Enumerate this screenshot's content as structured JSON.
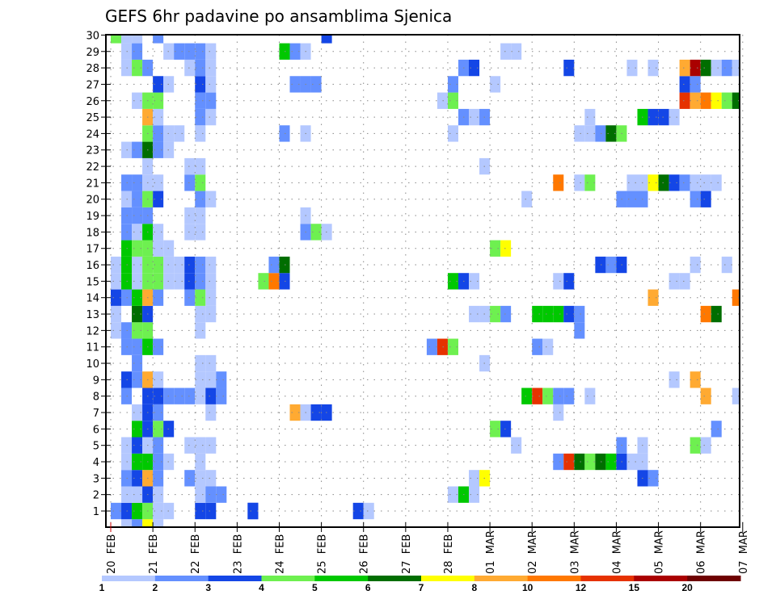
{
  "chart_data": {
    "type": "heatmap",
    "title": "GEFS 6hr padavine po ansamblima Sjenica",
    "xlabel": "",
    "ylabel": "",
    "x_ticks": [
      "20 FEB",
      "21 FEB",
      "22 FEB",
      "23 FEB",
      "24 FEB",
      "25 FEB",
      "26 FEB",
      "27 FEB",
      "28 FEB",
      "01 MAR",
      "02 MAR",
      "03 MAR",
      "04 MAR",
      "05 MAR",
      "06 MAR",
      "07 MAR"
    ],
    "y_ticks": [
      "1",
      "2",
      "3",
      "4",
      "5",
      "6",
      "7",
      "8",
      "9",
      "10",
      "11",
      "12",
      "13",
      "14",
      "15",
      "16",
      "17",
      "18",
      "19",
      "20",
      "21",
      "22",
      "23",
      "24",
      "25",
      "26",
      "27",
      "28",
      "29",
      "30"
    ],
    "x_step": "6hr",
    "grid": true,
    "colorbar": {
      "labels": [
        "1",
        "2",
        "3",
        "4",
        "5",
        "6",
        "7",
        "8",
        "10",
        "12",
        "15",
        "20"
      ],
      "colors": [
        "#b4c8ff",
        "#6490ff",
        "#1446e6",
        "#6ef050",
        "#00c800",
        "#006e00",
        "#ffff00",
        "#ffaa32",
        "#ff7800",
        "#e63200",
        "#aa0000",
        "#6e0000"
      ]
    },
    "cells_note": "rows keyed by ensemble member; each entry is [6hr step index from 20 FEB, color level 1-12]",
    "rows": {
      "0": [
        [
          1,
          1
        ],
        [
          2,
          2
        ],
        [
          3,
          7
        ],
        [
          4,
          1
        ]
      ],
      "1": [
        [
          0,
          2
        ],
        [
          1,
          3
        ],
        [
          2,
          5
        ],
        [
          3,
          4
        ],
        [
          4,
          1
        ],
        [
          5,
          1
        ],
        [
          13,
          3
        ],
        [
          13,
          3
        ],
        [
          23,
          3
        ],
        [
          24,
          1
        ],
        [
          9,
          3
        ],
        [
          8,
          3
        ]
      ],
      "2": [
        [
          1,
          1
        ],
        [
          2,
          1
        ],
        [
          3,
          3
        ],
        [
          4,
          1
        ],
        [
          8,
          1
        ],
        [
          9,
          2
        ],
        [
          10,
          2
        ],
        [
          32,
          1
        ],
        [
          33,
          5
        ],
        [
          34,
          1
        ]
      ],
      "3": [
        [
          1,
          2
        ],
        [
          2,
          3
        ],
        [
          3,
          8
        ],
        [
          4,
          2
        ],
        [
          7,
          2
        ],
        [
          8,
          1
        ],
        [
          9,
          1
        ],
        [
          34,
          1
        ],
        [
          35,
          7
        ],
        [
          50,
          3
        ],
        [
          51,
          2
        ]
      ],
      "4": [
        [
          1,
          1
        ],
        [
          2,
          5
        ],
        [
          3,
          5
        ],
        [
          4,
          2
        ],
        [
          5,
          1
        ],
        [
          8,
          1
        ],
        [
          42,
          2
        ],
        [
          43,
          10
        ],
        [
          44,
          6
        ],
        [
          45,
          4
        ],
        [
          46,
          6
        ],
        [
          47,
          5
        ],
        [
          48,
          3
        ],
        [
          49,
          1
        ],
        [
          50,
          1
        ]
      ],
      "5": [
        [
          1,
          1
        ],
        [
          2,
          3
        ],
        [
          3,
          1
        ],
        [
          4,
          2
        ],
        [
          7,
          1
        ],
        [
          8,
          1
        ],
        [
          9,
          1
        ],
        [
          38,
          1
        ],
        [
          48,
          2
        ],
        [
          50,
          1
        ],
        [
          55,
          4
        ],
        [
          56,
          1
        ]
      ],
      "6": [
        [
          2,
          5
        ],
        [
          3,
          3
        ],
        [
          4,
          4
        ],
        [
          5,
          3
        ],
        [
          36,
          4
        ],
        [
          37,
          3
        ],
        [
          57,
          2
        ]
      ],
      "7": [
        [
          2,
          1
        ],
        [
          3,
          3
        ],
        [
          4,
          2
        ],
        [
          9,
          1
        ],
        [
          17,
          8
        ],
        [
          18,
          1
        ],
        [
          19,
          3
        ],
        [
          20,
          3
        ],
        [
          42,
          1
        ]
      ],
      "8": [
        [
          1,
          2
        ],
        [
          3,
          3
        ],
        [
          4,
          3
        ],
        [
          5,
          2
        ],
        [
          6,
          2
        ],
        [
          7,
          2
        ],
        [
          8,
          1
        ],
        [
          9,
          3
        ],
        [
          10,
          2
        ],
        [
          39,
          5
        ],
        [
          40,
          10
        ],
        [
          41,
          4
        ],
        [
          42,
          2
        ],
        [
          43,
          2
        ],
        [
          45,
          1
        ],
        [
          56,
          8
        ],
        [
          59,
          1
        ]
      ],
      "9": [
        [
          1,
          3
        ],
        [
          2,
          2
        ],
        [
          3,
          8
        ],
        [
          4,
          1
        ],
        [
          8,
          1
        ],
        [
          9,
          1
        ],
        [
          10,
          2
        ],
        [
          53,
          1
        ],
        [
          55,
          8
        ]
      ],
      "10": [
        [
          2,
          2
        ],
        [
          8,
          1
        ],
        [
          9,
          1
        ],
        [
          35,
          1
        ]
      ],
      "11": [
        [
          1,
          2
        ],
        [
          2,
          2
        ],
        [
          3,
          5
        ],
        [
          4,
          2
        ],
        [
          30,
          2
        ],
        [
          31,
          10
        ],
        [
          32,
          4
        ],
        [
          40,
          2
        ],
        [
          41,
          1
        ]
      ],
      "12": [
        [
          0,
          1
        ],
        [
          1,
          2
        ],
        [
          2,
          4
        ],
        [
          3,
          4
        ],
        [
          8,
          1
        ],
        [
          44,
          2
        ]
      ],
      "13": [
        [
          0,
          1
        ],
        [
          2,
          6
        ],
        [
          3,
          3
        ],
        [
          8,
          1
        ],
        [
          9,
          1
        ],
        [
          34,
          1
        ],
        [
          35,
          1
        ],
        [
          36,
          4
        ],
        [
          37,
          2
        ],
        [
          40,
          5
        ],
        [
          41,
          5
        ],
        [
          42,
          5
        ],
        [
          43,
          3
        ],
        [
          44,
          2
        ],
        [
          56,
          9
        ],
        [
          57,
          6
        ]
      ],
      "14": [
        [
          0,
          3
        ],
        [
          1,
          2
        ],
        [
          2,
          5
        ],
        [
          3,
          8
        ],
        [
          4,
          2
        ],
        [
          7,
          2
        ],
        [
          8,
          4
        ],
        [
          9,
          1
        ],
        [
          51,
          8
        ],
        [
          59,
          9
        ]
      ],
      "15": [
        [
          0,
          1
        ],
        [
          1,
          5
        ],
        [
          2,
          1
        ],
        [
          3,
          4
        ],
        [
          4,
          4
        ],
        [
          5,
          1
        ],
        [
          6,
          1
        ],
        [
          7,
          3
        ],
        [
          8,
          2
        ],
        [
          9,
          1
        ],
        [
          14,
          4
        ],
        [
          15,
          9
        ],
        [
          16,
          3
        ],
        [
          32,
          5
        ],
        [
          33,
          3
        ],
        [
          34,
          1
        ],
        [
          42,
          1
        ],
        [
          43,
          3
        ],
        [
          53,
          1
        ],
        [
          54,
          1
        ]
      ],
      "16": [
        [
          0,
          1
        ],
        [
          1,
          5
        ],
        [
          2,
          1
        ],
        [
          3,
          4
        ],
        [
          4,
          4
        ],
        [
          5,
          1
        ],
        [
          6,
          1
        ],
        [
          7,
          3
        ],
        [
          8,
          2
        ],
        [
          9,
          1
        ],
        [
          15,
          2
        ],
        [
          16,
          6
        ],
        [
          46,
          3
        ],
        [
          47,
          2
        ],
        [
          48,
          3
        ],
        [
          55,
          1
        ],
        [
          58,
          1
        ]
      ],
      "17": [
        [
          1,
          5
        ],
        [
          2,
          4
        ],
        [
          3,
          4
        ],
        [
          4,
          1
        ],
        [
          5,
          1
        ],
        [
          36,
          4
        ],
        [
          37,
          7
        ]
      ],
      "18": [
        [
          1,
          2
        ],
        [
          2,
          1
        ],
        [
          3,
          5
        ],
        [
          4,
          1
        ],
        [
          7,
          1
        ],
        [
          8,
          1
        ],
        [
          18,
          2
        ],
        [
          19,
          4
        ],
        [
          20,
          1
        ]
      ],
      "19": [
        [
          1,
          2
        ],
        [
          2,
          2
        ],
        [
          3,
          2
        ],
        [
          7,
          1
        ],
        [
          8,
          1
        ],
        [
          18,
          1
        ]
      ],
      "20": [
        [
          1,
          1
        ],
        [
          2,
          2
        ],
        [
          3,
          4
        ],
        [
          4,
          3
        ],
        [
          8,
          2
        ],
        [
          9,
          1
        ],
        [
          39,
          1
        ],
        [
          48,
          2
        ],
        [
          49,
          2
        ],
        [
          50,
          2
        ],
        [
          55,
          2
        ],
        [
          56,
          3
        ]
      ],
      "21": [
        [
          1,
          2
        ],
        [
          2,
          2
        ],
        [
          3,
          1
        ],
        [
          4,
          1
        ],
        [
          7,
          2
        ],
        [
          8,
          4
        ],
        [
          42,
          9
        ],
        [
          44,
          1
        ],
        [
          45,
          4
        ],
        [
          49,
          1
        ],
        [
          50,
          1
        ],
        [
          51,
          7
        ],
        [
          52,
          6
        ],
        [
          53,
          3
        ],
        [
          54,
          2
        ],
        [
          55,
          1
        ],
        [
          56,
          1
        ],
        [
          57,
          1
        ]
      ],
      "22": [
        [
          3,
          1
        ],
        [
          7,
          1
        ],
        [
          8,
          1
        ],
        [
          35,
          1
        ]
      ],
      "23": [
        [
          1,
          1
        ],
        [
          2,
          2
        ],
        [
          3,
          6
        ],
        [
          4,
          2
        ],
        [
          5,
          1
        ]
      ],
      "24": [
        [
          3,
          4
        ],
        [
          4,
          2
        ],
        [
          5,
          1
        ],
        [
          6,
          1
        ],
        [
          8,
          1
        ],
        [
          16,
          2
        ],
        [
          18,
          1
        ],
        [
          32,
          1
        ],
        [
          44,
          1
        ],
        [
          45,
          1
        ],
        [
          46,
          2
        ],
        [
          47,
          6
        ],
        [
          48,
          4
        ]
      ],
      "25": [
        [
          3,
          8
        ],
        [
          4,
          1
        ],
        [
          8,
          2
        ],
        [
          9,
          1
        ],
        [
          33,
          2
        ],
        [
          34,
          1
        ],
        [
          35,
          2
        ],
        [
          45,
          1
        ],
        [
          50,
          5
        ],
        [
          51,
          3
        ],
        [
          52,
          3
        ],
        [
          53,
          1
        ]
      ],
      "26": [
        [
          2,
          1
        ],
        [
          3,
          4
        ],
        [
          4,
          4
        ],
        [
          8,
          2
        ],
        [
          9,
          2
        ],
        [
          31,
          1
        ],
        [
          32,
          4
        ],
        [
          54,
          10
        ],
        [
          55,
          8
        ],
        [
          56,
          9
        ],
        [
          57,
          7
        ],
        [
          58,
          4
        ],
        [
          59,
          6
        ]
      ],
      "27": [
        [
          4,
          3
        ],
        [
          5,
          1
        ],
        [
          8,
          3
        ],
        [
          9,
          1
        ],
        [
          17,
          2
        ],
        [
          18,
          2
        ],
        [
          19,
          2
        ],
        [
          32,
          2
        ],
        [
          36,
          1
        ],
        [
          54,
          3
        ],
        [
          55,
          2
        ]
      ],
      "28": [
        [
          1,
          1
        ],
        [
          2,
          4
        ],
        [
          3,
          2
        ],
        [
          7,
          1
        ],
        [
          8,
          2
        ],
        [
          9,
          1
        ],
        [
          33,
          2
        ],
        [
          34,
          3
        ],
        [
          43,
          3
        ],
        [
          49,
          1
        ],
        [
          51,
          1
        ],
        [
          54,
          8
        ],
        [
          55,
          11
        ],
        [
          56,
          6
        ],
        [
          57,
          1
        ],
        [
          58,
          2
        ],
        [
          59,
          1
        ]
      ],
      "29": [
        [
          1,
          1
        ],
        [
          2,
          2
        ],
        [
          5,
          1
        ],
        [
          6,
          2
        ],
        [
          7,
          2
        ],
        [
          8,
          2
        ],
        [
          9,
          1
        ],
        [
          16,
          5
        ],
        [
          17,
          2
        ],
        [
          18,
          1
        ],
        [
          37,
          1
        ],
        [
          38,
          1
        ]
      ],
      "30": [
        [
          0,
          4
        ],
        [
          1,
          1
        ],
        [
          2,
          1
        ],
        [
          4,
          2
        ],
        [
          20,
          3
        ]
      ]
    }
  }
}
